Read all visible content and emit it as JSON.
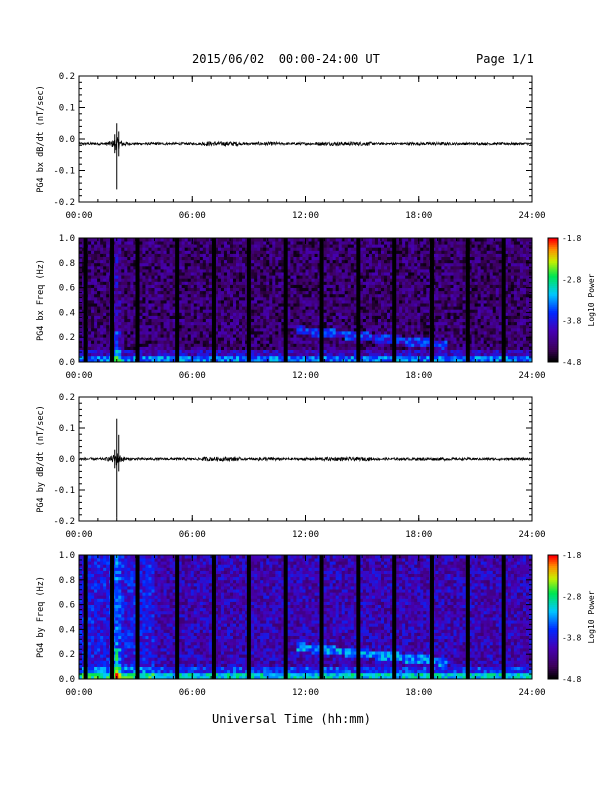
{
  "header": {
    "title": "2015/06/02  00:00-24:00 UT",
    "page": "Page 1/1"
  },
  "xaxis_label": "Universal Time (hh:mm)",
  "chart_data": [
    {
      "type": "line",
      "ylabel": "PG4 bx dB/dt (nT/sec)",
      "xlim": [
        0,
        24
      ],
      "xticks": [
        "00:00",
        "06:00",
        "12:00",
        "18:00",
        "24:00"
      ],
      "ylim": [
        -0.2,
        0.2
      ],
      "yticks": [
        "-0.2",
        "-0.1",
        "0.0",
        "0.1",
        "0.2"
      ],
      "baseline": -0.015,
      "burst": {
        "time_h": 2.0,
        "max": 0.05,
        "min": -0.16
      }
    },
    {
      "type": "heatmap",
      "ylabel": "PG4 bx Freq (Hz)",
      "xlim": [
        0,
        24
      ],
      "xticks": [
        "00:00",
        "06:00",
        "12:00",
        "18:00",
        "24:00"
      ],
      "ylim": [
        0.0,
        1.0
      ],
      "yticks": [
        "0.0",
        "0.2",
        "0.4",
        "0.6",
        "0.8",
        "1.0"
      ],
      "colorbar": {
        "label": "Log10 Power",
        "ticks": [
          "-1.8",
          "-2.8",
          "-3.8",
          "-4.8"
        ],
        "range": [
          -4.8,
          -1.8
        ]
      },
      "gaps_h": [
        0.35,
        1.75,
        3.1,
        5.2,
        7.15,
        9.0,
        10.95,
        12.85,
        14.8,
        16.7,
        18.7,
        20.6,
        22.5
      ]
    },
    {
      "type": "line",
      "ylabel": "PG4 by dB/dt (nT/sec)",
      "xlim": [
        0,
        24
      ],
      "xticks": [
        "00:00",
        "06:00",
        "12:00",
        "18:00",
        "24:00"
      ],
      "ylim": [
        -0.2,
        0.2
      ],
      "yticks": [
        "-0.2",
        "-0.1",
        "0.0",
        "0.1",
        "0.2"
      ],
      "baseline": 0.0,
      "burst": {
        "time_h": 2.0,
        "max": 0.13,
        "min": -0.19
      }
    },
    {
      "type": "heatmap",
      "ylabel": "PG4 by Freq (Hz)",
      "xlim": [
        0,
        24
      ],
      "xticks": [
        "00:00",
        "06:00",
        "12:00",
        "18:00",
        "24:00"
      ],
      "ylim": [
        0.0,
        1.0
      ],
      "yticks": [
        "0.0",
        "0.2",
        "0.4",
        "0.6",
        "0.8",
        "1.0"
      ],
      "colorbar": {
        "label": "Log10 Power",
        "ticks": [
          "-1.8",
          "-2.8",
          "-3.8",
          "-4.8"
        ],
        "range": [
          -4.8,
          -1.8
        ]
      },
      "gaps_h": [
        0.35,
        1.75,
        3.1,
        5.2,
        7.15,
        9.0,
        10.95,
        12.85,
        14.8,
        16.7,
        18.7,
        20.6,
        22.5
      ]
    }
  ]
}
